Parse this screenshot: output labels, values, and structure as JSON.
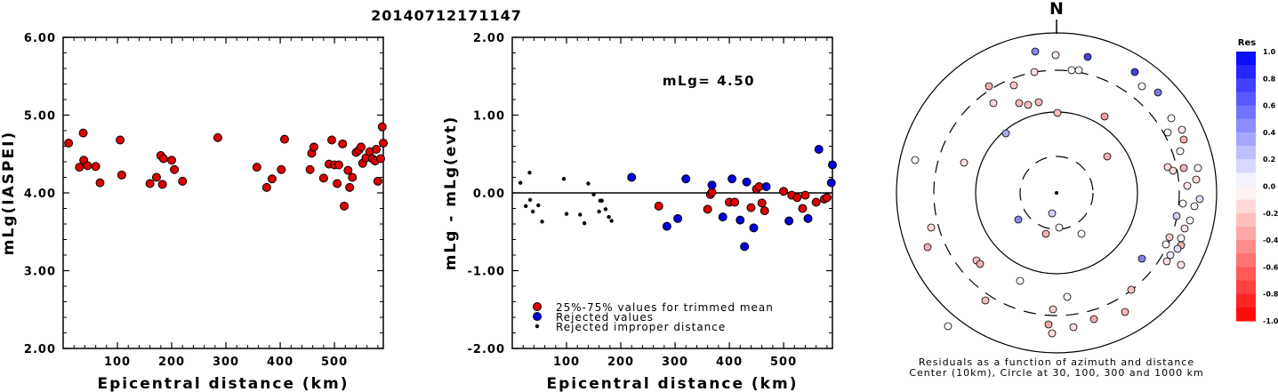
{
  "title": "20140712171147",
  "chart_data": [
    {
      "type": "scatter",
      "xlabel": "Epicentral distance (km)",
      "ylabel": "mLg(IASPEI)",
      "xlim": [
        0,
        590
      ],
      "ylim": [
        2.0,
        6.0
      ],
      "xticks": [
        "100",
        "200",
        "300",
        "400",
        "500"
      ],
      "yticks": [
        "2.00",
        "3.00",
        "4.00",
        "5.00",
        "6.00"
      ],
      "points": [
        [
          10,
          4.64
        ],
        [
          30,
          4.33
        ],
        [
          37,
          4.77
        ],
        [
          38,
          4.42
        ],
        [
          45,
          4.35
        ],
        [
          60,
          4.34
        ],
        [
          68,
          4.13
        ],
        [
          105,
          4.68
        ],
        [
          108,
          4.23
        ],
        [
          160,
          4.12
        ],
        [
          172,
          4.2
        ],
        [
          183,
          4.11
        ],
        [
          180,
          4.48
        ],
        [
          185,
          4.44
        ],
        [
          200,
          4.42
        ],
        [
          205,
          4.3
        ],
        [
          220,
          4.15
        ],
        [
          285,
          4.71
        ],
        [
          357,
          4.33
        ],
        [
          375,
          4.07
        ],
        [
          385,
          4.18
        ],
        [
          402,
          4.3
        ],
        [
          408,
          4.69
        ],
        [
          455,
          4.3
        ],
        [
          458,
          4.51
        ],
        [
          462,
          4.59
        ],
        [
          480,
          4.19
        ],
        [
          490,
          4.37
        ],
        [
          495,
          4.68
        ],
        [
          500,
          4.36
        ],
        [
          505,
          4.12
        ],
        [
          508,
          4.36
        ],
        [
          515,
          4.63
        ],
        [
          518,
          3.83
        ],
        [
          525,
          4.29
        ],
        [
          528,
          4.07
        ],
        [
          533,
          4.2
        ],
        [
          540,
          4.52
        ],
        [
          545,
          4.55
        ],
        [
          549,
          4.59
        ],
        [
          552,
          4.38
        ],
        [
          558,
          4.45
        ],
        [
          565,
          4.53
        ],
        [
          570,
          4.44
        ],
        [
          575,
          4.41
        ],
        [
          577,
          4.56
        ],
        [
          580,
          4.15
        ],
        [
          585,
          4.44
        ],
        [
          588,
          4.85
        ],
        [
          590,
          4.64
        ]
      ]
    },
    {
      "type": "scatter",
      "xlabel": "Epicentral distance (km)",
      "ylabel": "mLg - mLg(evt)",
      "xlim": [
        0,
        590
      ],
      "ylim": [
        -2.0,
        2.0
      ],
      "xticks": [
        "100",
        "200",
        "300",
        "400",
        "500"
      ],
      "yticks": [
        "-2.00",
        "-1.00",
        "0.00",
        "1.00",
        "2.00"
      ],
      "annotation": "mLg= 4.50",
      "series": [
        {
          "name": "25%-75% values for trimmed mean",
          "color": "#dd0000",
          "points": [
            [
              270,
              -0.17
            ],
            [
              360,
              -0.21
            ],
            [
              365,
              -0.02
            ],
            [
              368,
              0.01
            ],
            [
              400,
              -0.12
            ],
            [
              410,
              -0.12
            ],
            [
              440,
              -0.19
            ],
            [
              450,
              0.05
            ],
            [
              455,
              0.08
            ],
            [
              460,
              -0.13
            ],
            [
              465,
              -0.23
            ],
            [
              500,
              0.02
            ],
            [
              515,
              -0.03
            ],
            [
              525,
              -0.06
            ],
            [
              535,
              -0.2
            ],
            [
              540,
              -0.03
            ],
            [
              560,
              -0.12
            ],
            [
              575,
              -0.08
            ],
            [
              580,
              -0.06
            ]
          ]
        },
        {
          "name": "Rejected values",
          "color": "#0000dd",
          "points": [
            [
              220,
              0.2
            ],
            [
              285,
              -0.43
            ],
            [
              305,
              -0.33
            ],
            [
              320,
              0.18
            ],
            [
              368,
              0.1
            ],
            [
              388,
              -0.31
            ],
            [
              405,
              0.18
            ],
            [
              420,
              -0.35
            ],
            [
              428,
              -0.69
            ],
            [
              432,
              0.14
            ],
            [
              445,
              -0.45
            ],
            [
              468,
              0.08
            ],
            [
              510,
              -0.36
            ],
            [
              545,
              -0.33
            ],
            [
              565,
              0.56
            ],
            [
              590,
              0.36
            ],
            [
              588,
              0.13
            ]
          ]
        },
        {
          "name": "Rejected improper distance",
          "color": "#000000",
          "points": [
            [
              15,
              0.13
            ],
            [
              25,
              -0.17
            ],
            [
              32,
              0.26
            ],
            [
              33,
              -0.09
            ],
            [
              38,
              -0.24
            ],
            [
              48,
              -0.16
            ],
            [
              55,
              -0.37
            ],
            [
              95,
              0.18
            ],
            [
              100,
              -0.27
            ],
            [
              125,
              -0.28
            ],
            [
              133,
              -0.39
            ],
            [
              140,
              0.12
            ],
            [
              150,
              -0.02
            ],
            [
              160,
              -0.24
            ],
            [
              165,
              -0.1
            ],
            [
              172,
              -0.21
            ],
            [
              178,
              -0.31
            ],
            [
              183,
              -0.36
            ],
            [
              162,
              -0.1
            ]
          ]
        }
      ]
    },
    {
      "type": "scatter",
      "title": "N",
      "caption_line1": "Residuals as a function of azimuth and distance",
      "caption_line2": "Center (10km), Circle at 30, 100, 300 and 1000 km",
      "colorbar_title": "Res",
      "colorbar_ticks": [
        "1.0",
        "0.8",
        "0.6",
        "0.4",
        "0.2",
        "0.0",
        "-0.2",
        "-0.4",
        "-0.6",
        "-0.8",
        "-1.0"
      ]
    }
  ]
}
